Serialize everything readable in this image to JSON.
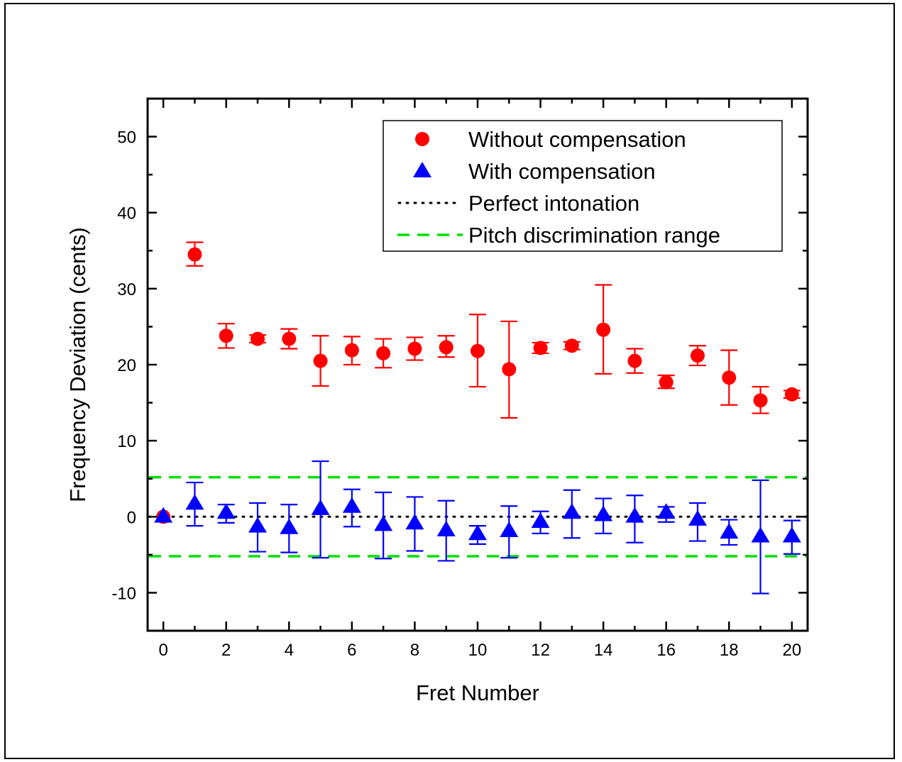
{
  "chart_data": {
    "type": "scatter",
    "xlabel": "Fret Number",
    "ylabel": "Frequency Deviation (cents)",
    "xlim": [
      -0.5,
      20.5
    ],
    "ylim": [
      -15,
      55
    ],
    "xticks": [
      0,
      2,
      4,
      6,
      8,
      10,
      12,
      14,
      16,
      18,
      20
    ],
    "yticks": [
      -10,
      0,
      10,
      20,
      30,
      40,
      50
    ],
    "grid": false,
    "legend_position": "top-right",
    "series": [
      {
        "name": "Without compensation",
        "marker": "circle",
        "color": "#ff0000",
        "x": [
          0,
          1,
          2,
          3,
          4,
          5,
          6,
          7,
          8,
          9,
          10,
          11,
          12,
          13,
          14,
          15,
          16,
          17,
          18,
          19,
          20
        ],
        "y": [
          0,
          34.5,
          23.8,
          23.4,
          23.4,
          20.5,
          21.9,
          21.5,
          22.1,
          22.3,
          21.8,
          19.4,
          22.2,
          22.5,
          24.6,
          20.5,
          17.7,
          21.2,
          18.3,
          15.3,
          16.1
        ],
        "err_low": [
          0,
          33.0,
          22.2,
          22.9,
          22.1,
          17.2,
          20.0,
          19.6,
          20.6,
          21.0,
          17.1,
          13.0,
          21.5,
          22.0,
          18.8,
          18.9,
          16.9,
          19.9,
          14.7,
          13.6,
          15.6
        ],
        "err_high": [
          0,
          36.1,
          25.4,
          23.9,
          24.7,
          23.8,
          23.7,
          23.4,
          23.6,
          23.8,
          26.6,
          25.7,
          22.9,
          23.0,
          30.5,
          22.1,
          18.6,
          22.5,
          21.9,
          17.1,
          16.6
        ]
      },
      {
        "name": "With compensation",
        "marker": "triangle",
        "color": "#0000ff",
        "x": [
          0,
          1,
          2,
          3,
          4,
          5,
          6,
          7,
          8,
          9,
          10,
          11,
          12,
          13,
          14,
          15,
          16,
          17,
          18,
          19,
          20
        ],
        "y": [
          0,
          1.7,
          0.5,
          -1.3,
          -1.5,
          1.0,
          1.3,
          -1.1,
          -0.9,
          -1.8,
          -2.3,
          -1.9,
          -0.7,
          0.5,
          0.2,
          0.0,
          0.5,
          -0.4,
          -2.1,
          -2.6,
          -2.6
        ],
        "err_low": [
          0,
          -1.2,
          -0.8,
          -4.6,
          -4.7,
          -5.4,
          -1.3,
          -5.5,
          -4.5,
          -5.8,
          -3.6,
          -5.4,
          -2.2,
          -2.8,
          -2.2,
          -3.4,
          -0.7,
          -3.2,
          -3.7,
          -10.1,
          -4.9
        ],
        "err_high": [
          0,
          4.5,
          1.6,
          1.8,
          1.6,
          7.3,
          3.6,
          3.2,
          2.6,
          2.1,
          -1.2,
          1.4,
          0.7,
          3.5,
          2.4,
          2.8,
          1.3,
          1.8,
          -0.4,
          4.8,
          -0.5
        ]
      },
      {
        "name": "Perfect intonation",
        "line": "dotted",
        "color": "#000000",
        "y": 0
      },
      {
        "name": "Pitch discrimination range",
        "line": "dashed",
        "color": "#00e000",
        "y": [
          5.2,
          -5.2
        ]
      }
    ]
  }
}
